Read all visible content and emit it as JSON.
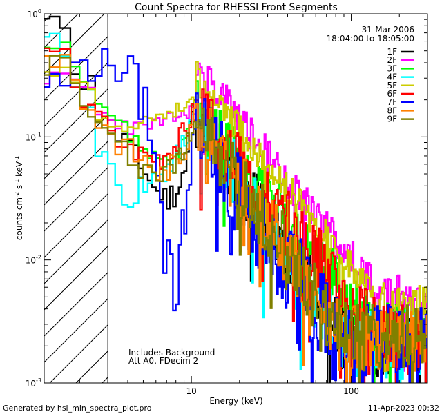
{
  "chart_data": {
    "type": "line",
    "title": "Count Spectra for RHESSI Front Segments",
    "xlabel": "Energy (keV)",
    "ylabel_parts": [
      "counts cm",
      "-2",
      " s",
      "-1",
      " keV",
      "-1"
    ],
    "xscale": "log",
    "yscale": "log",
    "xlim": [
      1.2,
      300
    ],
    "ylim": [
      0.001,
      1
    ],
    "x_tick_labels": [
      {
        "value": 10,
        "label": "10"
      },
      {
        "value": 100,
        "label": "100"
      }
    ],
    "y_tick_labels": [
      {
        "value": 1,
        "base": "10",
        "exp": "0"
      },
      {
        "value": 0.1,
        "base": "10",
        "exp": "-1"
      },
      {
        "value": 0.01,
        "base": "10",
        "exp": "-2"
      },
      {
        "value": 0.001,
        "base": "10",
        "exp": "-3"
      }
    ],
    "hatched_region": [
      1.2,
      3.0
    ],
    "header": {
      "date": "31-Mar-2006",
      "time_range": "18:04:00 to 18:05:00"
    },
    "annotations": [
      "Includes Background",
      "Att A0, FDecim 2"
    ],
    "footer": {
      "left": "Generated by hsi_min_spectra_plot.pro",
      "right": "11-Apr-2023 00:32"
    },
    "series": [
      {
        "name": "1F",
        "color": "#000000",
        "seed": 11,
        "low": [
          0.85,
          0.4,
          0.28,
          0.16,
          0.12,
          0.1,
          0.08,
          0.07,
          0.055,
          0.045,
          0.04,
          0.035,
          0.033,
          0.032,
          0.035,
          0.038,
          0.04,
          0.05,
          0.07,
          0.12,
          0.17
        ],
        "kink": 0.9,
        "scale": 1.0,
        "noise": 0.22
      },
      {
        "name": "2F",
        "color": "#ff00ff",
        "seed": 23,
        "low": [
          0.3,
          0.28,
          0.25,
          0.15,
          0.14,
          0.13,
          0.12,
          0.12,
          0.12,
          0.13,
          0.13,
          0.13,
          0.13,
          0.14,
          0.14,
          0.15,
          0.15,
          0.15,
          0.16,
          0.17,
          0.16
        ],
        "kink": 1.4,
        "scale": 2.4,
        "noise": 0.12
      },
      {
        "name": "3F",
        "color": "#00ff00",
        "seed": 37,
        "low": [
          0.5,
          0.35,
          0.25,
          0.16,
          0.14,
          0.12,
          0.1,
          0.09,
          0.08,
          0.07,
          0.065,
          0.06,
          0.06,
          0.06,
          0.065,
          0.07,
          0.08,
          0.09,
          0.11,
          0.14,
          0.17
        ],
        "kink": 1.0,
        "scale": 1.2,
        "noise": 0.16
      },
      {
        "name": "4F",
        "color": "#00ffff",
        "seed": 41,
        "low": [
          0.55,
          0.25,
          0.16,
          0.09,
          0.05,
          0.035,
          0.03,
          0.035,
          0.04,
          0.04,
          0.045,
          0.05,
          0.05,
          0.055,
          0.06,
          0.07,
          0.08,
          0.09,
          0.11,
          0.13,
          0.15
        ],
        "kink": 0.8,
        "scale": 0.9,
        "noise": 0.24
      },
      {
        "name": "5F",
        "color": "#cccc00",
        "seed": 53,
        "low": [
          0.35,
          0.3,
          0.25,
          0.14,
          0.12,
          0.12,
          0.12,
          0.13,
          0.14,
          0.15,
          0.15,
          0.15,
          0.15,
          0.16,
          0.16,
          0.17,
          0.17,
          0.18,
          0.19,
          0.2,
          0.19
        ],
        "kink": 1.6,
        "scale": 2.0,
        "noise": 0.1
      },
      {
        "name": "6F",
        "color": "#ff0000",
        "seed": 67,
        "low": [
          0.45,
          0.3,
          0.2,
          0.14,
          0.1,
          0.09,
          0.08,
          0.08,
          0.075,
          0.07,
          0.07,
          0.07,
          0.075,
          0.08,
          0.085,
          0.09,
          0.1,
          0.11,
          0.12,
          0.14,
          0.16
        ],
        "kink": 1.0,
        "scale": 1.1,
        "noise": 0.2
      },
      {
        "name": "7F",
        "color": "#0000ff",
        "seed": 79,
        "low": [
          0.28,
          0.35,
          0.4,
          0.4,
          0.4,
          0.38,
          0.36,
          0.3,
          0.2,
          0.12,
          0.07,
          0.04,
          0.025,
          0.018,
          0.014,
          0.012,
          0.015,
          0.02,
          0.035,
          0.06,
          0.1
        ],
        "kink": 0.7,
        "scale": 0.8,
        "noise": 0.3
      },
      {
        "name": "8F",
        "color": "#ff8000",
        "seed": 83,
        "low": [
          0.45,
          0.28,
          0.18,
          0.13,
          0.1,
          0.09,
          0.08,
          0.07,
          0.065,
          0.06,
          0.055,
          0.05,
          0.05,
          0.055,
          0.06,
          0.065,
          0.07,
          0.08,
          0.1,
          0.13,
          0.15
        ],
        "kink": 0.9,
        "scale": 1.0,
        "noise": 0.2
      },
      {
        "name": "9F",
        "color": "#808000",
        "seed": 97,
        "low": [
          0.4,
          0.26,
          0.17,
          0.12,
          0.09,
          0.08,
          0.07,
          0.065,
          0.06,
          0.055,
          0.05,
          0.05,
          0.05,
          0.055,
          0.06,
          0.065,
          0.07,
          0.08,
          0.1,
          0.12,
          0.14
        ],
        "kink": 0.9,
        "scale": 1.0,
        "noise": 0.22
      }
    ]
  }
}
